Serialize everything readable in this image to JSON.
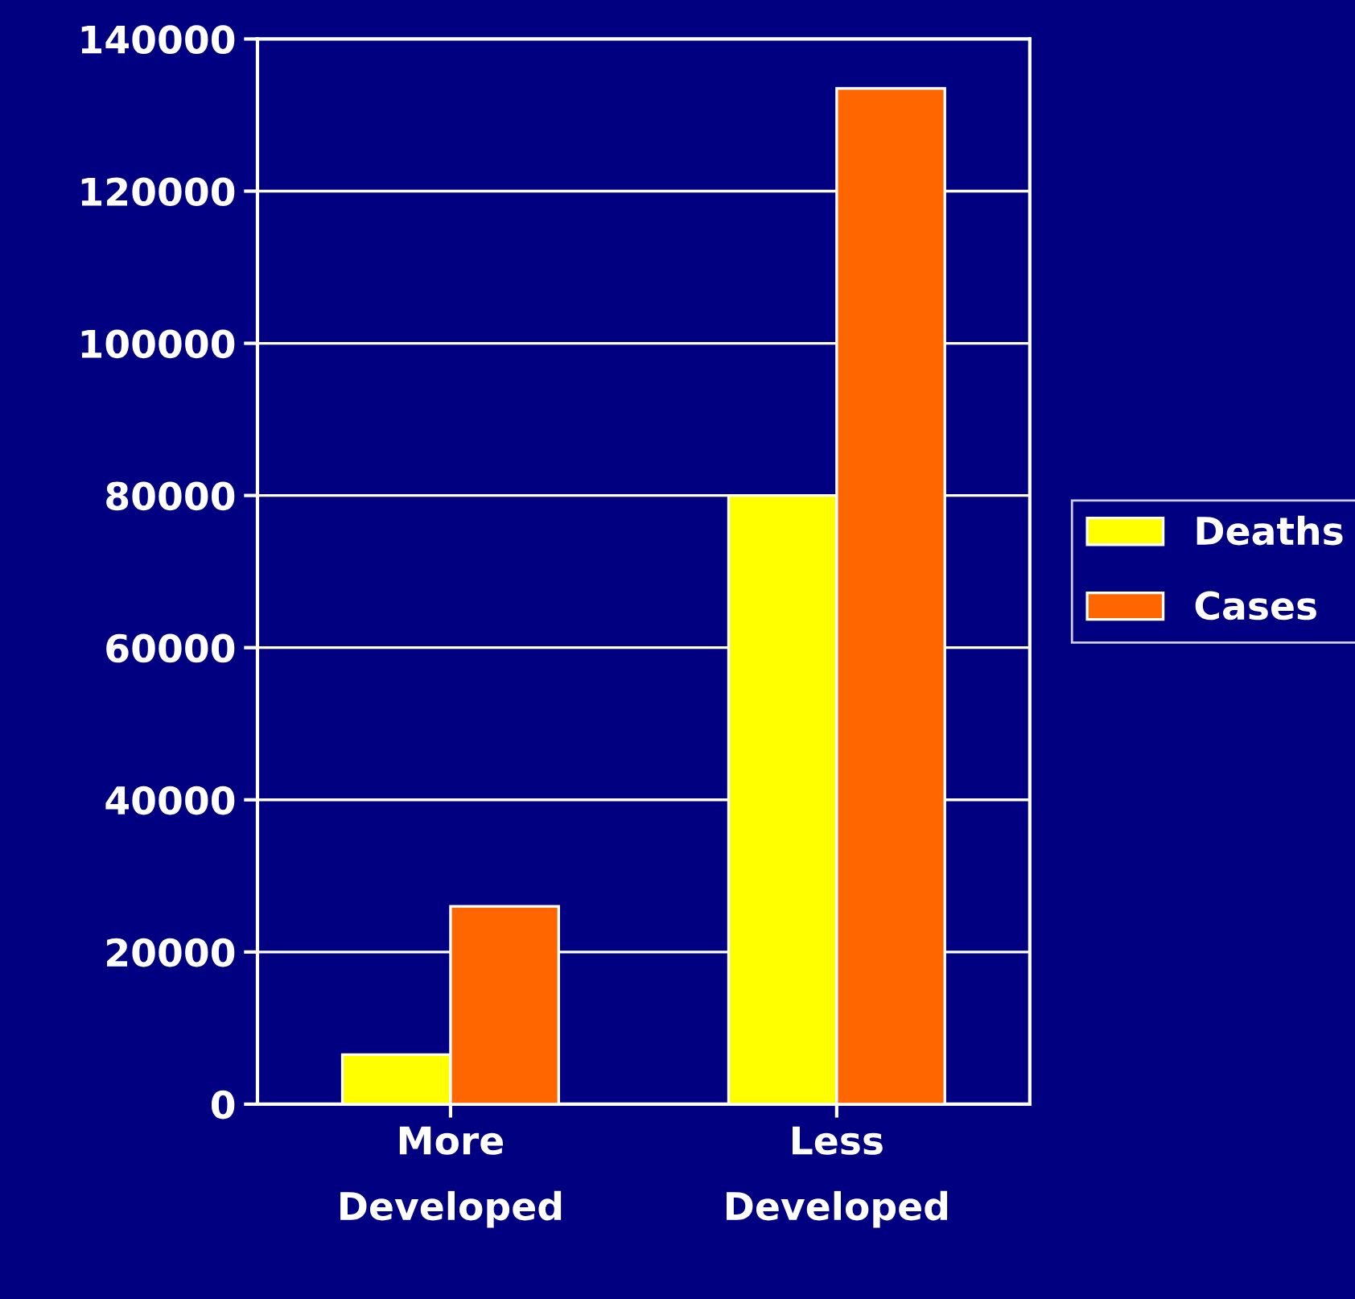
{
  "chart_data": {
    "type": "bar",
    "categories": [
      "More\nDeveloped",
      "Less\nDeveloped"
    ],
    "series": [
      {
        "name": "Deaths",
        "color": "#ffff00",
        "values": [
          6500,
          80000
        ]
      },
      {
        "name": "Cases",
        "color": "#ff6600",
        "values": [
          26000,
          133500
        ]
      }
    ],
    "ylim": [
      0,
      140000
    ],
    "yticks": [
      0,
      20000,
      40000,
      60000,
      80000,
      100000,
      120000,
      140000
    ],
    "grid": "y",
    "legend": "right"
  }
}
